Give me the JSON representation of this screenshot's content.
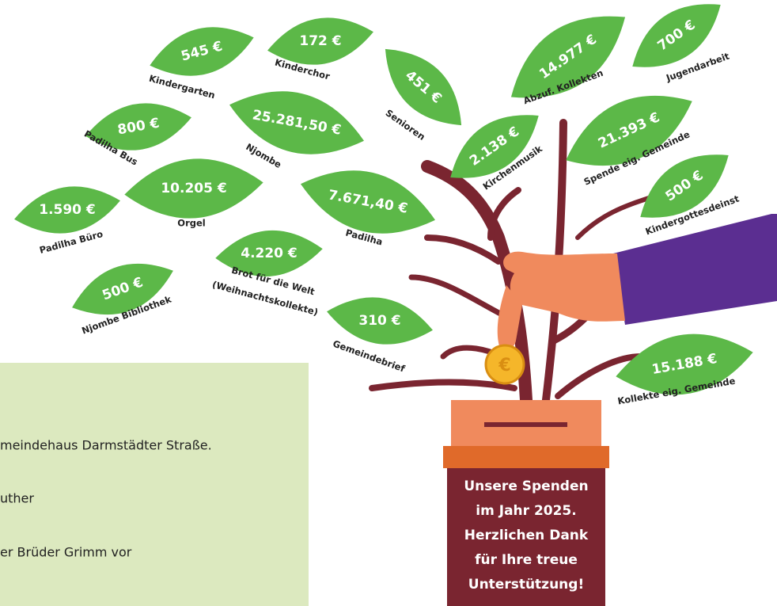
{
  "leaves": [
    {
      "amount": "545 €",
      "label": "Kindergarten"
    },
    {
      "amount": "172 €",
      "label": "Kinderchor"
    },
    {
      "amount": "451 €",
      "label": "Senioren"
    },
    {
      "amount": "14.977 €",
      "label": "Abzuf. Kollekten"
    },
    {
      "amount": "700 €",
      "label": "Jugendarbeit"
    },
    {
      "amount": "800 €",
      "label": "Padilha Bus"
    },
    {
      "amount": "25.281,50 €",
      "label": "Njombe"
    },
    {
      "amount": "2.138 €",
      "label": "Kirchenmusik"
    },
    {
      "amount": "21.393 €",
      "label": "Spende eig. Gemeinde"
    },
    {
      "amount": "1.590 €",
      "label": "Padilha Büro"
    },
    {
      "amount": "10.205 €",
      "label": "Orgel"
    },
    {
      "amount": "7.671,40 €",
      "label": "Padilha"
    },
    {
      "amount": "500 €",
      "label": "Kindergottesdeinst"
    },
    {
      "amount": "500 €",
      "label": "Njombe Bibliothek"
    },
    {
      "amount": "4.220 €",
      "label": "Brot für die Welt",
      "sublabel": "(Weihnachtskollekte)"
    },
    {
      "amount": "310 €",
      "label": "Gemeindebrief"
    },
    {
      "amount": "15.188 €",
      "label": "Kollekte eig. Gemeinde"
    }
  ],
  "panel": {
    "lines": [
      "meindehaus Darmstädter Straße.",
      "uther",
      "er Brüder Grimm vor"
    ]
  },
  "box": {
    "lines": [
      "Unsere Spenden",
      "im  Jahr 2025.",
      "Herzlichen Dank",
      "für Ihre treue",
      "Unterstützung!"
    ]
  }
}
